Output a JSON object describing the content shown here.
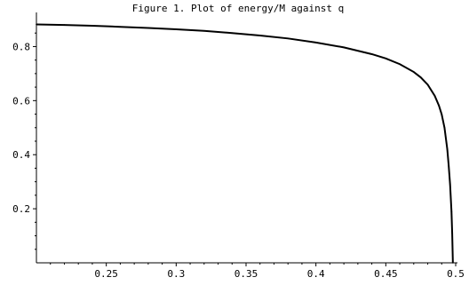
{
  "chart_data": {
    "type": "line",
    "title": "Figure 1. Plot of energy/M against q",
    "xlabel": "",
    "ylabel": "",
    "xlim": [
      0.2,
      0.5
    ],
    "ylim": [
      0.0,
      0.9
    ],
    "grid": false,
    "x_ticks": [
      0.25,
      0.3,
      0.35,
      0.4,
      0.45,
      0.5
    ],
    "x_tick_labels": [
      "0.25",
      "0.3",
      "0.35",
      "0.4",
      "0.45",
      "0.5"
    ],
    "y_ticks": [
      0.2,
      0.4,
      0.6,
      0.8
    ],
    "y_tick_labels": [
      "0.2",
      "0.4",
      "0.6",
      "0.8"
    ],
    "series": [
      {
        "x": [
          0.2,
          0.22,
          0.24,
          0.26,
          0.28,
          0.3,
          0.32,
          0.34,
          0.36,
          0.38,
          0.4,
          0.42,
          0.44,
          0.45,
          0.46,
          0.47,
          0.475,
          0.48,
          0.485,
          0.488,
          0.49,
          0.492,
          0.494,
          0.495,
          0.496,
          0.497,
          0.4975,
          0.498
        ],
        "values": [
          0.882,
          0.88,
          0.877,
          0.873,
          0.869,
          0.864,
          0.858,
          0.85,
          0.841,
          0.83,
          0.815,
          0.797,
          0.772,
          0.756,
          0.735,
          0.706,
          0.686,
          0.659,
          0.618,
          0.582,
          0.549,
          0.5,
          0.42,
          0.36,
          0.29,
          0.19,
          0.11,
          0.0
        ],
        "color": "#000000"
      }
    ]
  }
}
